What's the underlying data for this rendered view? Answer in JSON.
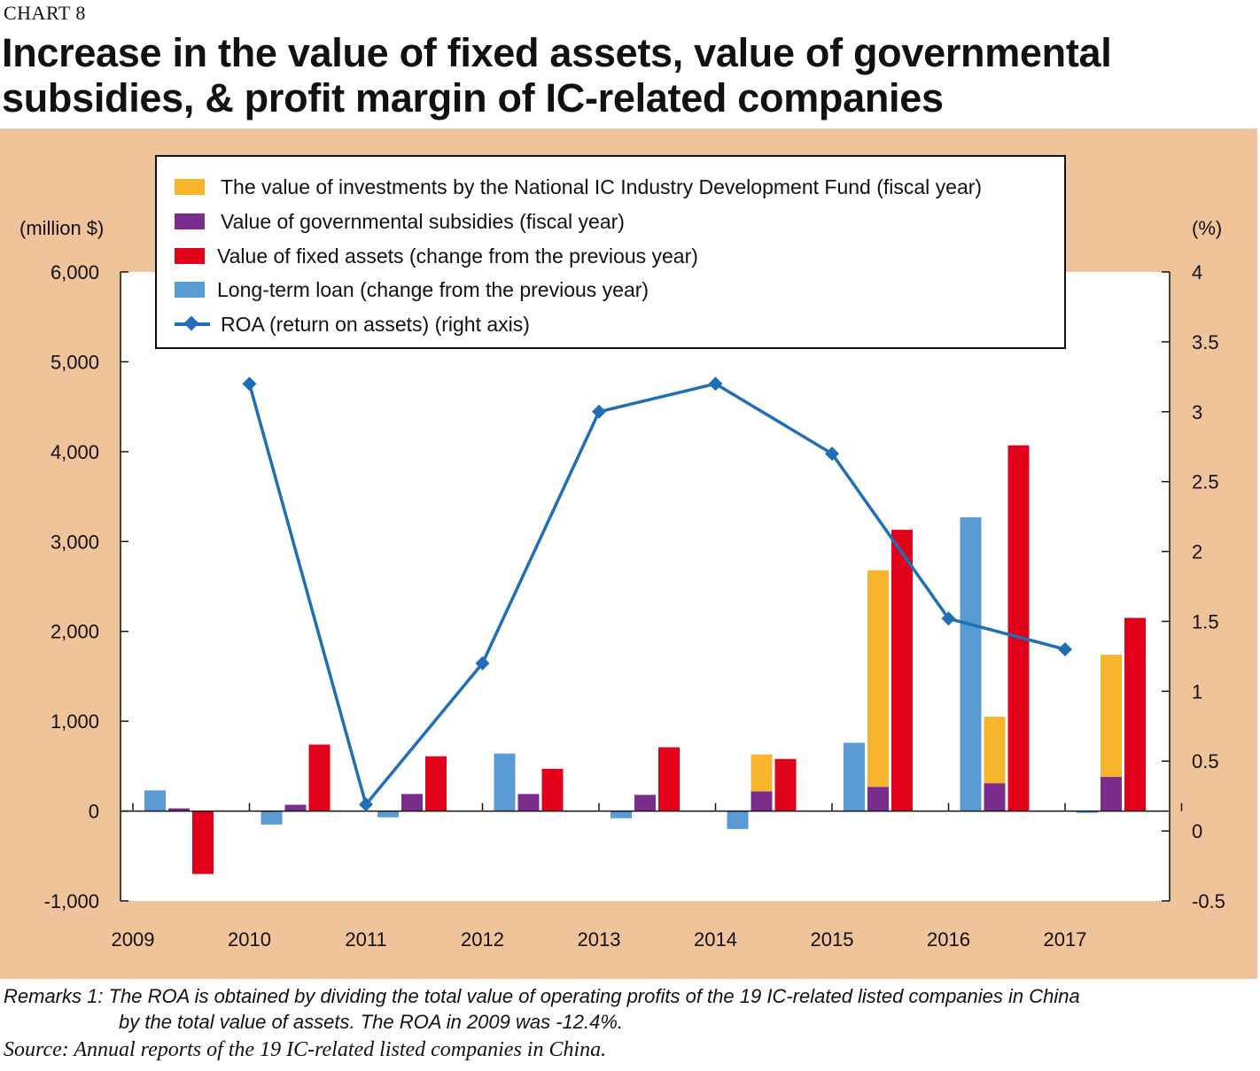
{
  "header": {
    "chart_label": "CHART 8",
    "title": "Increase in the value of fixed assets, value of governmental subsidies, & profit margin of IC-related companies"
  },
  "notes": {
    "remarks_line1": "Remarks 1: The ROA is obtained by dividing the total value of operating profits of the 19 IC-related listed companies in China",
    "remarks_line2": "by the total value of assets. The ROA in 2009 was -12.4%.",
    "source": "Source: Annual reports of the 19 IC-related listed companies in China."
  },
  "colors": {
    "panel": "#f1c39b",
    "fund": "#f6b52c",
    "subsidies": "#7b2d8e",
    "fixed_assets": "#e2001a",
    "loan": "#5a9bd5",
    "roa": "#1f6fb8"
  },
  "chart_data": {
    "type": "bar",
    "categories": [
      "2009",
      "2010",
      "2011",
      "2012",
      "2013",
      "2014",
      "2015",
      "2016",
      "2017"
    ],
    "left_axis": {
      "label": "(million $)",
      "ylim": [
        -1000,
        6000
      ],
      "ticks": [
        -1000,
        0,
        1000,
        2000,
        3000,
        4000,
        5000,
        6000
      ],
      "tick_labels": [
        "-1,000",
        "0",
        "1,000",
        "2,000",
        "3,000",
        "4,000",
        "5,000",
        "6,000"
      ]
    },
    "right_axis": {
      "label": "(%)",
      "ylim": [
        -0.5,
        4
      ],
      "ticks": [
        -0.5,
        0,
        0.5,
        1,
        1.5,
        2,
        2.5,
        3,
        3.5,
        4
      ],
      "tick_labels": [
        "-0.5",
        "0",
        "0.5",
        "1",
        "1.5",
        "2",
        "2.5",
        "3",
        "3.5",
        "4"
      ]
    },
    "series": [
      {
        "key": "loan",
        "type": "bar",
        "axis": "left",
        "name": "Long-term loan (change from the previous year)",
        "values": [
          230,
          -150,
          -70,
          640,
          -80,
          -200,
          760,
          3270,
          -20
        ]
      },
      {
        "key": "subsidies",
        "type": "stacked-bar",
        "axis": "left",
        "name": "Value of governmental subsidies (fiscal year)",
        "values": [
          30,
          70,
          190,
          190,
          180,
          220,
          270,
          310,
          380
        ]
      },
      {
        "key": "fund",
        "type": "stacked-bar",
        "axis": "left",
        "name": "The value of investments by the National IC Industry Development Fund (fiscal year)",
        "values": [
          0,
          0,
          0,
          0,
          0,
          410,
          2410,
          740,
          1360
        ]
      },
      {
        "key": "fixed_assets",
        "type": "bar",
        "axis": "left",
        "name": "Value of fixed assets (change from the previous year)",
        "values": [
          -700,
          740,
          610,
          470,
          710,
          580,
          3130,
          4070,
          2150
        ]
      },
      {
        "key": "roa",
        "type": "line",
        "axis": "right",
        "name": "ROA (return on assets) (right axis)",
        "x": [
          "2010",
          "2011",
          "2012",
          "2013",
          "2014",
          "2015",
          "2016",
          "2017"
        ],
        "values": [
          3.2,
          0.19,
          1.2,
          3.0,
          3.2,
          2.7,
          1.52,
          1.3
        ]
      }
    ],
    "legend_order": [
      "fund",
      "subsidies",
      "fixed_assets",
      "loan",
      "roa"
    ],
    "legend_position": "top-left inside plot"
  }
}
